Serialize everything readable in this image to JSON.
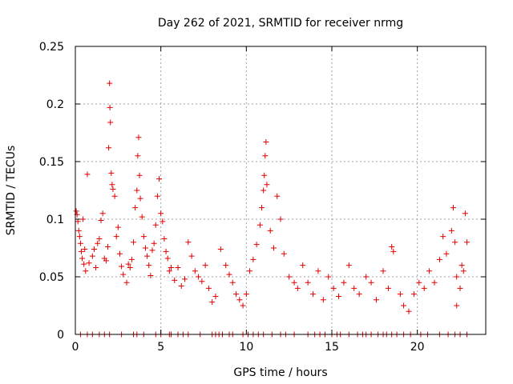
{
  "chart_data": {
    "type": "scatter",
    "title": "Day 262 of 2021, SRMTID for receiver nrmg",
    "xlabel": "GPS time / hours",
    "ylabel": "SRMTID / TECUs",
    "xlim": [
      0,
      24
    ],
    "ylim": [
      0,
      0.25
    ],
    "x_ticks": [
      0,
      5,
      10,
      15,
      20
    ],
    "x_tick_labels": [
      "0",
      "5",
      "10",
      "15",
      "20"
    ],
    "y_ticks": [
      0,
      0.05,
      0.1,
      0.15,
      0.2,
      0.25
    ],
    "y_tick_labels": [
      "0",
      "0.05",
      "0.1",
      "0.15",
      "0.2",
      "0.25"
    ],
    "grid": true,
    "marker": "+",
    "series": [
      {
        "name": "SRMTID",
        "color": "#e00000",
        "points": [
          [
            0.05,
            0.107
          ],
          [
            0.1,
            0.104
          ],
          [
            0.15,
            0.098
          ],
          [
            0.2,
            0.09
          ],
          [
            0.25,
            0.085
          ],
          [
            0.3,
            0.079
          ],
          [
            0.35,
            0.072
          ],
          [
            0.4,
            0.066
          ],
          [
            0.45,
            0.1
          ],
          [
            0.5,
            0.061
          ],
          [
            0.55,
            0.074
          ],
          [
            0.6,
            0.055
          ],
          [
            0.7,
            0.139
          ],
          [
            0.8,
            0.062
          ],
          [
            1.0,
            0.068
          ],
          [
            1.1,
            0.074
          ],
          [
            1.2,
            0.058
          ],
          [
            1.3,
            0.079
          ],
          [
            1.4,
            0.083
          ],
          [
            1.5,
            0.099
          ],
          [
            1.6,
            0.105
          ],
          [
            1.7,
            0.066
          ],
          [
            1.8,
            0.064
          ],
          [
            1.9,
            0.076
          ],
          [
            1.95,
            0.162
          ],
          [
            2.0,
            0.218
          ],
          [
            2.02,
            0.197
          ],
          [
            2.05,
            0.184
          ],
          [
            2.1,
            0.14
          ],
          [
            2.15,
            0.13
          ],
          [
            2.2,
            0.126
          ],
          [
            2.3,
            0.12
          ],
          [
            2.4,
            0.085
          ],
          [
            2.5,
            0.093
          ],
          [
            2.6,
            0.07
          ],
          [
            2.7,
            0.059
          ],
          [
            2.8,
            0.052
          ],
          [
            3.0,
            0.045
          ],
          [
            3.1,
            0.061
          ],
          [
            3.2,
            0.058
          ],
          [
            3.3,
            0.065
          ],
          [
            3.4,
            0.08
          ],
          [
            3.5,
            0.11
          ],
          [
            3.6,
            0.125
          ],
          [
            3.65,
            0.155
          ],
          [
            3.7,
            0.171
          ],
          [
            3.75,
            0.138
          ],
          [
            3.8,
            0.118
          ],
          [
            3.9,
            0.102
          ],
          [
            4.0,
            0.085
          ],
          [
            4.1,
            0.075
          ],
          [
            4.2,
            0.068
          ],
          [
            4.3,
            0.06
          ],
          [
            4.4,
            0.051
          ],
          [
            4.5,
            0.073
          ],
          [
            4.6,
            0.079
          ],
          [
            4.7,
            0.095
          ],
          [
            4.8,
            0.12
          ],
          [
            4.9,
            0.135
          ],
          [
            5.0,
            0.105
          ],
          [
            5.1,
            0.098
          ],
          [
            5.2,
            0.083
          ],
          [
            5.3,
            0.072
          ],
          [
            5.4,
            0.066
          ],
          [
            5.5,
            0.055
          ],
          [
            5.6,
            0.058
          ],
          [
            5.8,
            0.047
          ],
          [
            6.0,
            0.058
          ],
          [
            6.2,
            0.042
          ],
          [
            6.4,
            0.048
          ],
          [
            6.6,
            0.08
          ],
          [
            6.8,
            0.068
          ],
          [
            7.0,
            0.055
          ],
          [
            7.2,
            0.05
          ],
          [
            7.4,
            0.046
          ],
          [
            7.6,
            0.06
          ],
          [
            7.8,
            0.04
          ],
          [
            8.0,
            0.028
          ],
          [
            8.2,
            0.033
          ],
          [
            8.5,
            0.074
          ],
          [
            8.8,
            0.06
          ],
          [
            9.0,
            0.052
          ],
          [
            9.2,
            0.045
          ],
          [
            9.4,
            0.035
          ],
          [
            9.6,
            0.03
          ],
          [
            9.8,
            0.025
          ],
          [
            10.0,
            0.035
          ],
          [
            10.2,
            0.055
          ],
          [
            10.4,
            0.065
          ],
          [
            10.6,
            0.078
          ],
          [
            10.8,
            0.095
          ],
          [
            10.9,
            0.11
          ],
          [
            11.0,
            0.125
          ],
          [
            11.05,
            0.138
          ],
          [
            11.1,
            0.155
          ],
          [
            11.15,
            0.167
          ],
          [
            11.2,
            0.13
          ],
          [
            11.4,
            0.09
          ],
          [
            11.6,
            0.075
          ],
          [
            11.8,
            0.12
          ],
          [
            12.0,
            0.1
          ],
          [
            12.2,
            0.07
          ],
          [
            12.5,
            0.05
          ],
          [
            12.8,
            0.045
          ],
          [
            13.0,
            0.04
          ],
          [
            13.3,
            0.06
          ],
          [
            13.6,
            0.045
          ],
          [
            13.9,
            0.035
          ],
          [
            14.2,
            0.055
          ],
          [
            14.5,
            0.03
          ],
          [
            14.8,
            0.05
          ],
          [
            15.1,
            0.04
          ],
          [
            15.4,
            0.033
          ],
          [
            15.7,
            0.045
          ],
          [
            16.0,
            0.06
          ],
          [
            16.3,
            0.04
          ],
          [
            16.6,
            0.035
          ],
          [
            17.0,
            0.05
          ],
          [
            17.3,
            0.045
          ],
          [
            17.6,
            0.03
          ],
          [
            18.0,
            0.055
          ],
          [
            18.3,
            0.04
          ],
          [
            18.5,
            0.076
          ],
          [
            18.6,
            0.072
          ],
          [
            19.0,
            0.035
          ],
          [
            19.2,
            0.025
          ],
          [
            19.5,
            0.02
          ],
          [
            19.8,
            0.035
          ],
          [
            20.1,
            0.045
          ],
          [
            20.4,
            0.04
          ],
          [
            20.7,
            0.055
          ],
          [
            21.0,
            0.045
          ],
          [
            21.3,
            0.065
          ],
          [
            21.5,
            0.085
          ],
          [
            21.7,
            0.07
          ],
          [
            22.0,
            0.09
          ],
          [
            22.1,
            0.11
          ],
          [
            22.2,
            0.08
          ],
          [
            22.3,
            0.05
          ],
          [
            22.5,
            0.04
          ],
          [
            22.6,
            0.06
          ],
          [
            22.7,
            0.055
          ],
          [
            22.8,
            0.105
          ],
          [
            22.9,
            0.08
          ],
          [
            22.3,
            0.025
          ]
        ]
      },
      {
        "name": "SRMTID (zero)",
        "color": "#e00000",
        "points": [
          [
            0.3,
            0
          ],
          [
            0.7,
            0
          ],
          [
            1.0,
            0
          ],
          [
            1.4,
            0
          ],
          [
            1.7,
            0
          ],
          [
            2.0,
            0
          ],
          [
            2.7,
            0
          ],
          [
            3.4,
            0
          ],
          [
            3.6,
            0
          ],
          [
            4.0,
            0
          ],
          [
            4.7,
            0
          ],
          [
            5.0,
            0
          ],
          [
            5.5,
            0
          ],
          [
            5.6,
            0
          ],
          [
            6.0,
            0
          ],
          [
            6.3,
            0
          ],
          [
            6.6,
            0
          ],
          [
            7.3,
            0
          ],
          [
            8.0,
            0
          ],
          [
            8.2,
            0
          ],
          [
            8.4,
            0
          ],
          [
            8.6,
            0
          ],
          [
            9.0,
            0
          ],
          [
            9.2,
            0
          ],
          [
            9.8,
            0
          ],
          [
            10.1,
            0
          ],
          [
            10.4,
            0
          ],
          [
            10.7,
            0
          ],
          [
            11.0,
            0
          ],
          [
            11.5,
            0
          ],
          [
            12.0,
            0
          ],
          [
            12.3,
            0
          ],
          [
            12.8,
            0
          ],
          [
            13.6,
            0
          ],
          [
            14.0,
            0
          ],
          [
            14.3,
            0
          ],
          [
            14.6,
            0
          ],
          [
            15.0,
            0
          ],
          [
            15.3,
            0
          ],
          [
            15.5,
            0
          ],
          [
            16.0,
            0
          ],
          [
            16.5,
            0
          ],
          [
            16.8,
            0
          ],
          [
            17.0,
            0
          ],
          [
            17.3,
            0
          ],
          [
            17.7,
            0
          ],
          [
            18.0,
            0
          ],
          [
            18.2,
            0
          ],
          [
            18.5,
            0
          ],
          [
            18.8,
            0
          ],
          [
            19.2,
            0
          ],
          [
            19.6,
            0
          ],
          [
            20.2,
            0
          ],
          [
            20.6,
            0
          ],
          [
            21.3,
            0
          ],
          [
            21.8,
            0
          ],
          [
            22.2,
            0
          ],
          [
            22.5,
            0
          ],
          [
            22.9,
            0
          ]
        ]
      }
    ]
  }
}
